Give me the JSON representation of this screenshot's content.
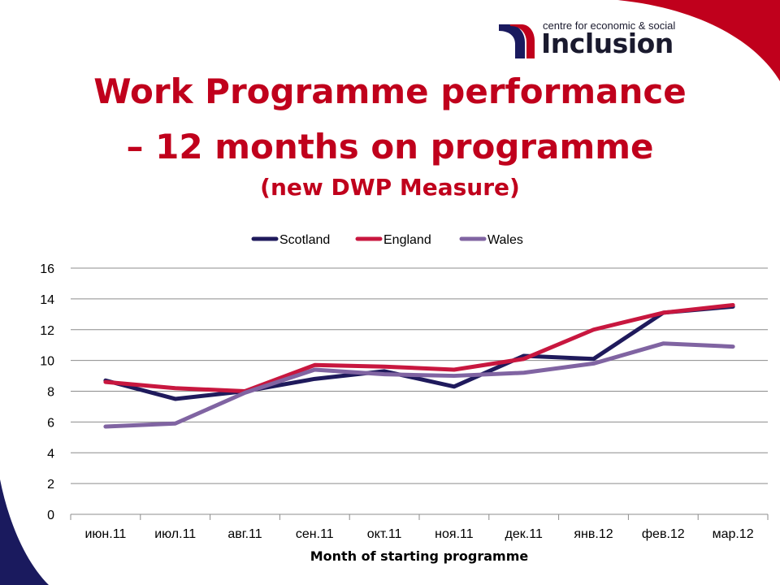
{
  "brand": {
    "small_text": "centre for economic & social",
    "big_text": "Inclusion",
    "accent": "#c0001c",
    "navy": "#1a1a5e"
  },
  "title": {
    "line1": "Work Programme performance",
    "line2": "– 12 months on programme",
    "line3": "(new DWP Measure)"
  },
  "chart_data": {
    "type": "line",
    "title": "",
    "xlabel": "Month of starting programme",
    "ylabel": "",
    "ylim": [
      0,
      16
    ],
    "yticks": [
      0,
      2,
      4,
      6,
      8,
      10,
      12,
      14,
      16
    ],
    "grid": true,
    "legend": "top-center",
    "categories": [
      "июн.11",
      "июл.11",
      "авг.11",
      "сен.11",
      "окт.11",
      "ноя.11",
      "дек.11",
      "янв.12",
      "фев.12",
      "мар.12"
    ],
    "series": [
      {
        "name": "Scotland",
        "color": "#1f1a5c",
        "values": [
          8.7,
          7.5,
          8.0,
          8.8,
          9.3,
          8.3,
          10.3,
          10.1,
          13.1,
          13.5
        ]
      },
      {
        "name": "England",
        "color": "#c8173f",
        "values": [
          8.6,
          8.2,
          8.0,
          9.7,
          9.6,
          9.4,
          10.1,
          12.0,
          13.1,
          13.6
        ]
      },
      {
        "name": "Wales",
        "color": "#8064a2",
        "values": [
          5.7,
          5.9,
          7.9,
          9.4,
          9.1,
          9.0,
          9.2,
          9.8,
          11.1,
          10.9
        ]
      }
    ]
  }
}
